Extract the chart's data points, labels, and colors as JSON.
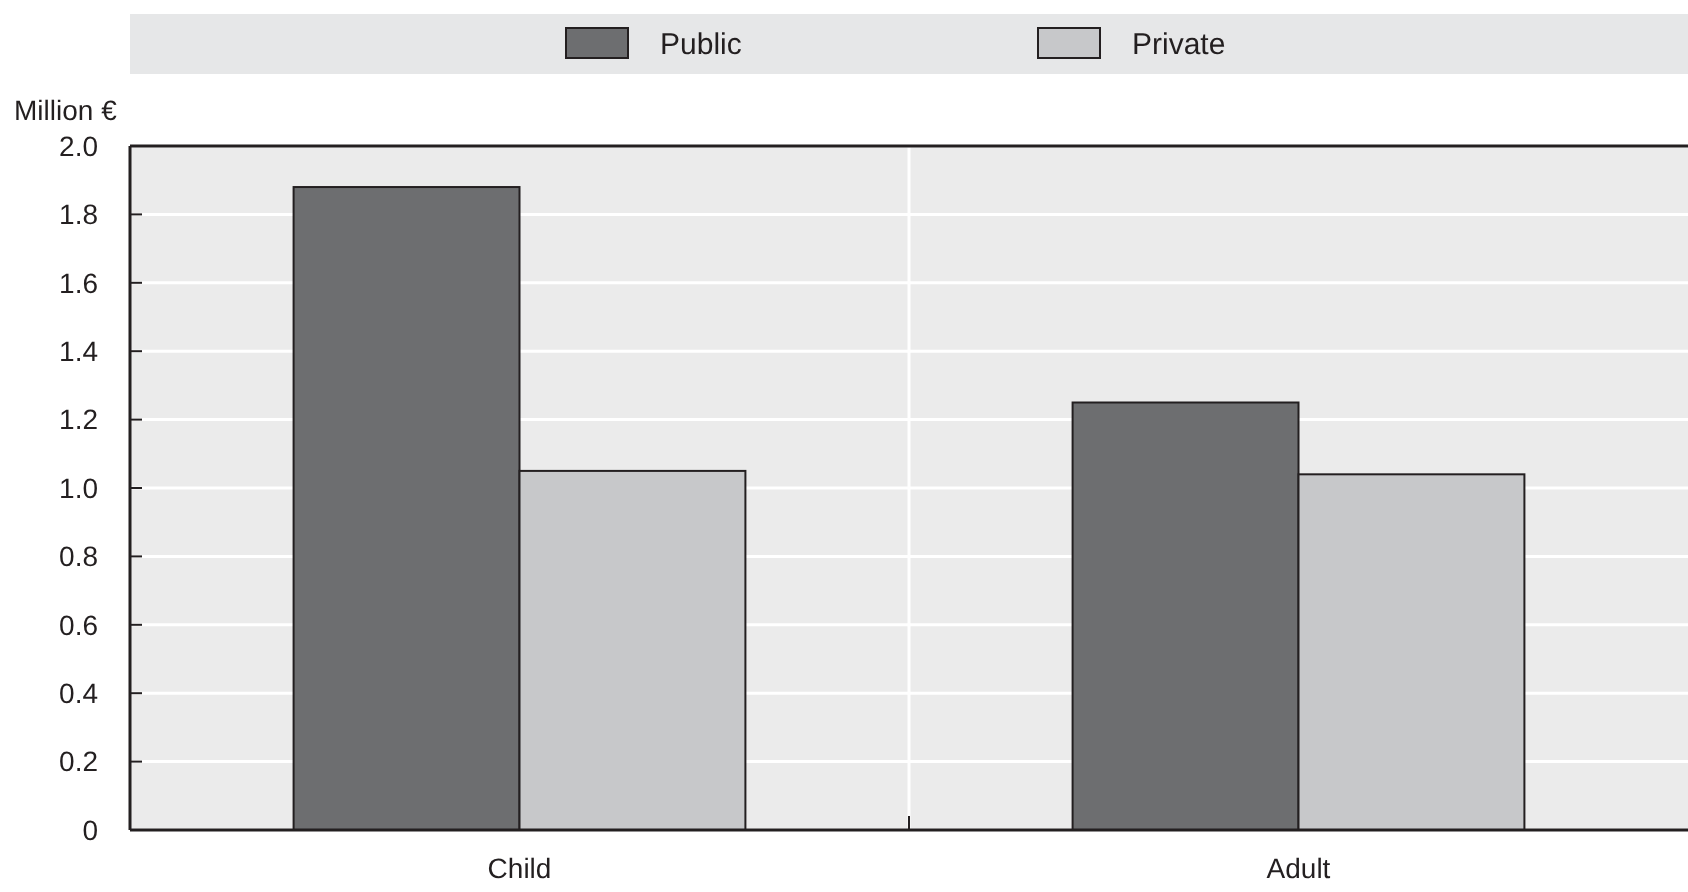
{
  "chart_data": {
    "type": "bar",
    "ylabel": "Million €",
    "categories": [
      "Child",
      "Adult"
    ],
    "series": [
      {
        "name": "Public",
        "color": "#6d6e70",
        "values": [
          1.88,
          1.25
        ]
      },
      {
        "name": "Private",
        "color": "#c7c8ca",
        "values": [
          1.05,
          1.04
        ]
      }
    ],
    "ylim": [
      0,
      2.0
    ],
    "yticks": [
      0,
      0.2,
      0.4,
      0.6,
      0.8,
      {
        "value": 1,
        "label": "1.0"
      },
      1.2,
      1.4,
      1.6,
      1.8,
      {
        "value": 2,
        "label": "2.0"
      }
    ],
    "grid": "y",
    "legend": "top"
  }
}
